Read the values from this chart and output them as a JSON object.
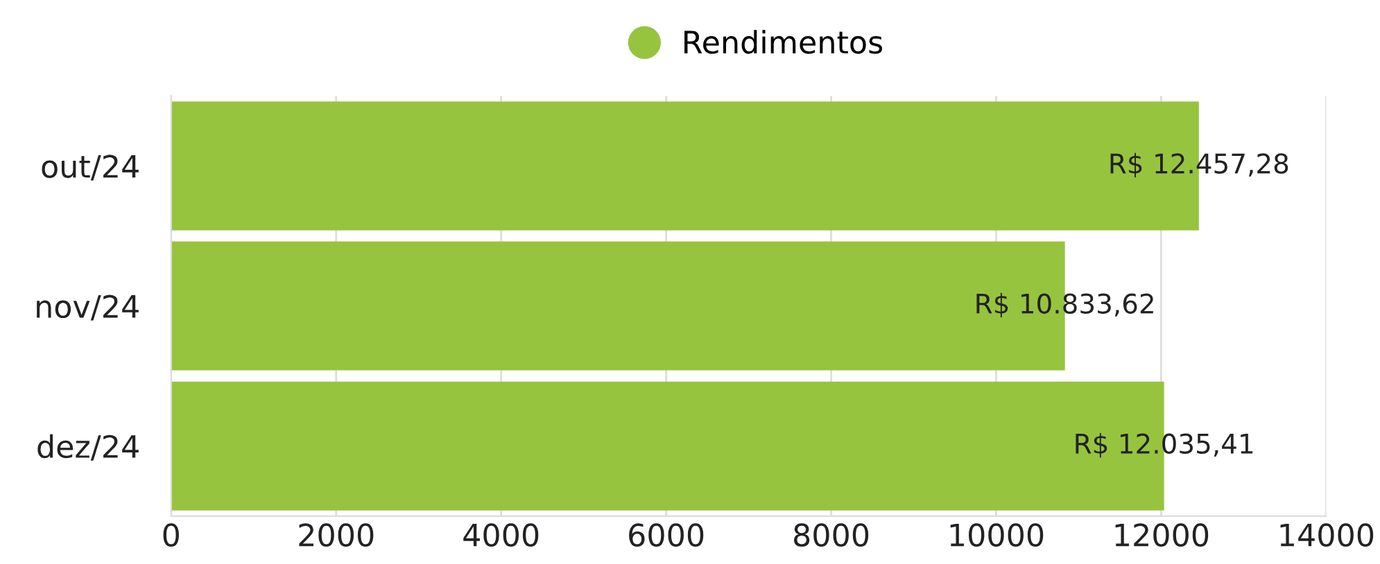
{
  "chart_data": {
    "type": "bar",
    "orientation": "horizontal",
    "categories": [
      "out/24",
      "nov/24",
      "dez/24"
    ],
    "series": [
      {
        "name": "Rendimentos",
        "color": "#97c43f",
        "values": [
          12457.28,
          10833.62,
          12035.41
        ],
        "value_labels": [
          "R$ 12.457,28",
          "R$ 10.833,62",
          "R$ 12.035,41"
        ]
      }
    ],
    "xlim": [
      0,
      14000
    ],
    "xticks": [
      0,
      2000,
      4000,
      6000,
      8000,
      10000,
      12000,
      14000
    ],
    "grid": "x",
    "legend": "top"
  }
}
